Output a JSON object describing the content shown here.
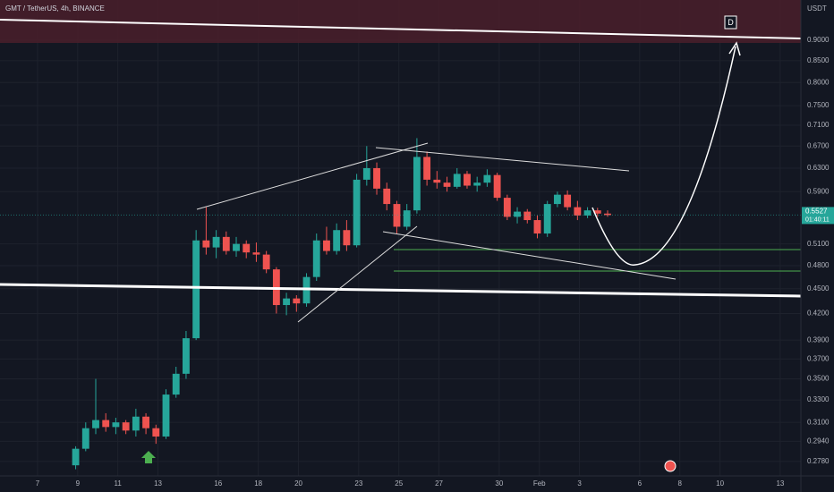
{
  "chart_data": {
    "type": "candlestick",
    "title": "GMT / TetherUS, 4h, BINANCE",
    "y_axis_label": "USDT",
    "countdown": "01:40:11",
    "drawing_label": "D",
    "up_color": "#26a69a",
    "down_color": "#ef5350",
    "log_scale": true,
    "grid": true,
    "x": [
      8.9,
      9.4,
      9.9,
      10.4,
      10.9,
      11.4,
      11.9,
      12.4,
      12.9,
      13.4,
      13.9,
      14.4,
      14.9,
      15.4,
      15.9,
      16.4,
      16.9,
      17.4,
      17.9,
      18.4,
      18.9,
      19.4,
      19.9,
      20.4,
      20.9,
      21.4,
      21.9,
      22.4,
      22.9,
      23.4,
      23.9,
      24.4,
      24.9,
      25.4,
      25.9,
      26.4,
      26.9,
      27.4,
      27.9,
      28.4,
      28.9,
      29.4,
      29.9,
      30.4,
      30.9,
      31.4,
      31.9,
      32.4,
      32.9,
      33.4,
      33.9,
      34.4,
      34.9,
      35.4
    ],
    "open": [
      0.275,
      0.288,
      0.305,
      0.312,
      0.306,
      0.31,
      0.303,
      0.315,
      0.305,
      0.298,
      0.335,
      0.355,
      0.392,
      0.515,
      0.505,
      0.52,
      0.5,
      0.51,
      0.498,
      0.495,
      0.475,
      0.43,
      0.438,
      0.432,
      0.465,
      0.515,
      0.5,
      0.53,
      0.508,
      0.61,
      0.63,
      0.595,
      0.57,
      0.535,
      0.56,
      0.65,
      0.61,
      0.605,
      0.598,
      0.62,
      0.6,
      0.605,
      0.618,
      0.58,
      0.55,
      0.558,
      0.545,
      0.525,
      0.57,
      0.585,
      0.565,
      0.552,
      0.56,
      0.555
    ],
    "high": [
      0.29,
      0.31,
      0.35,
      0.318,
      0.314,
      0.312,
      0.322,
      0.318,
      0.308,
      0.34,
      0.362,
      0.4,
      0.53,
      0.565,
      0.53,
      0.528,
      0.52,
      0.515,
      0.512,
      0.5,
      0.478,
      0.445,
      0.442,
      0.47,
      0.525,
      0.535,
      0.54,
      0.545,
      0.62,
      0.67,
      0.64,
      0.605,
      0.575,
      0.57,
      0.685,
      0.66,
      0.625,
      0.615,
      0.63,
      0.625,
      0.615,
      0.628,
      0.622,
      0.585,
      0.565,
      0.562,
      0.552,
      0.575,
      0.59,
      0.592,
      0.575,
      0.565,
      0.564,
      0.56
    ],
    "low": [
      0.272,
      0.286,
      0.3,
      0.302,
      0.3,
      0.3,
      0.298,
      0.3,
      0.292,
      0.296,
      0.332,
      0.35,
      0.39,
      0.495,
      0.49,
      0.495,
      0.492,
      0.49,
      0.485,
      0.47,
      0.42,
      0.418,
      0.422,
      0.428,
      0.46,
      0.495,
      0.495,
      0.5,
      0.505,
      0.6,
      0.585,
      0.56,
      0.525,
      0.53,
      0.555,
      0.6,
      0.595,
      0.59,
      0.595,
      0.595,
      0.59,
      0.598,
      0.575,
      0.545,
      0.54,
      0.54,
      0.518,
      0.52,
      0.565,
      0.56,
      0.545,
      0.548,
      0.55,
      0.55
    ],
    "close": [
      0.288,
      0.305,
      0.312,
      0.306,
      0.31,
      0.303,
      0.315,
      0.305,
      0.298,
      0.335,
      0.355,
      0.392,
      0.515,
      0.505,
      0.52,
      0.5,
      0.51,
      0.498,
      0.495,
      0.475,
      0.43,
      0.438,
      0.432,
      0.465,
      0.515,
      0.5,
      0.53,
      0.508,
      0.61,
      0.63,
      0.595,
      0.57,
      0.535,
      0.56,
      0.65,
      0.61,
      0.605,
      0.598,
      0.62,
      0.6,
      0.605,
      0.618,
      0.58,
      0.55,
      0.558,
      0.545,
      0.525,
      0.57,
      0.585,
      0.565,
      0.552,
      0.56,
      0.555,
      0.5527
    ],
    "xlim": [
      5.13,
      45.03
    ],
    "xticks": [
      7,
      9,
      11,
      13,
      16,
      18,
      20,
      23,
      25,
      27,
      30,
      {
        "value": 32,
        "label": "Feb"
      },
      {
        "value": 34,
        "label": "3"
      },
      {
        "value": 37,
        "label": "6"
      },
      {
        "value": 39,
        "label": "8"
      },
      {
        "value": 41,
        "label": "10"
      },
      {
        "value": 44,
        "label": "13"
      }
    ],
    "ylim": [
      0.267,
      1.007
    ],
    "yticks": [
      {
        "value": 0.278,
        "label": "0.2780"
      },
      {
        "value": 0.294,
        "label": "0.2940"
      },
      {
        "value": 0.31,
        "label": "0.3100"
      },
      {
        "value": 0.33,
        "label": "0.3300"
      },
      {
        "value": 0.35,
        "label": "0.3500"
      },
      {
        "value": 0.37,
        "label": "0.3700"
      },
      {
        "value": 0.39,
        "label": "0.3900"
      },
      {
        "value": 0.42,
        "label": "0.4200"
      },
      {
        "value": 0.45,
        "label": "0.4500"
      },
      {
        "value": 0.48,
        "label": "0.4800"
      },
      {
        "value": 0.51,
        "label": "0.5100"
      },
      {
        "value": 0.59,
        "label": "0.5900"
      },
      {
        "value": 0.63,
        "label": "0.6300"
      },
      {
        "value": 0.67,
        "label": "0.6700"
      },
      {
        "value": 0.71,
        "label": "0.7100"
      },
      {
        "value": 0.75,
        "label": "0.7500"
      },
      {
        "value": 0.8,
        "label": "0.8000"
      },
      {
        "value": 0.85,
        "label": "0.8500"
      },
      {
        "value": 0.9,
        "label": "0.9000"
      }
    ]
  }
}
